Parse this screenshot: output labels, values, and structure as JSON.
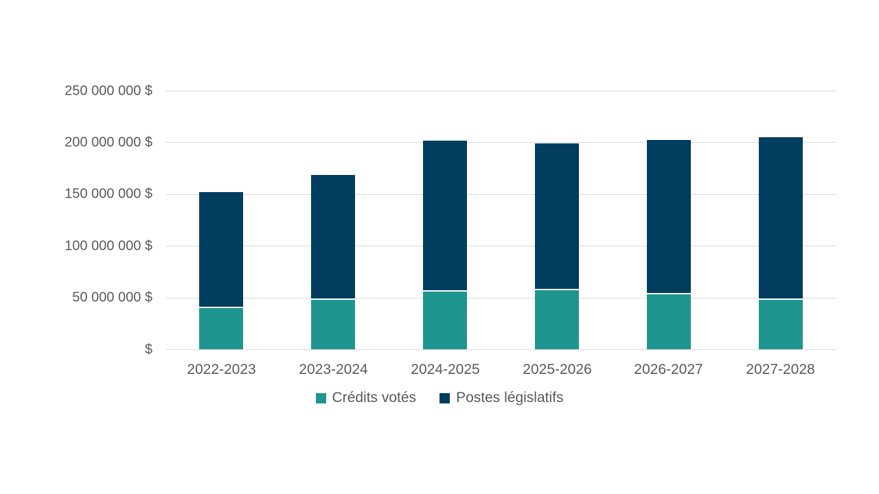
{
  "chart_data": {
    "type": "bar",
    "stacked": true,
    "title": "",
    "xlabel": "",
    "ylabel": "",
    "categories": [
      "2022-2023",
      "2023-2024",
      "2024-2025",
      "2025-2026",
      "2026-2027",
      "2027-2028"
    ],
    "series": [
      {
        "name": "Crédits votés",
        "color": "#1F958F",
        "values": [
          40000000,
          48000000,
          56000000,
          57000000,
          53000000,
          48000000
        ]
      },
      {
        "name": "Postes législatifs",
        "color": "#003D5E",
        "values": [
          112000000,
          121000000,
          146000000,
          142000000,
          149000000,
          157000000
        ]
      }
    ],
    "stack_totals": [
      152000000,
      169000000,
      202000000,
      199000000,
      202000000,
      205000000
    ],
    "ylim": [
      0,
      250000000
    ],
    "y_ticks": [
      {
        "value": 250000000,
        "label": "250 000 000 $"
      },
      {
        "value": 200000000,
        "label": "200 000 000 $"
      },
      {
        "value": 150000000,
        "label": "150 000 000 $"
      },
      {
        "value": 100000000,
        "label": "100 000 000 $"
      },
      {
        "value": 50000000,
        "label": "50 000 000 $"
      },
      {
        "value": 0,
        "label": "$"
      }
    ],
    "grid": "horizontal",
    "legend_position": "bottom"
  },
  "colors": {
    "background": "#FFFFFF",
    "gridline": "#D9D9D9",
    "axis_text": "#595959"
  }
}
